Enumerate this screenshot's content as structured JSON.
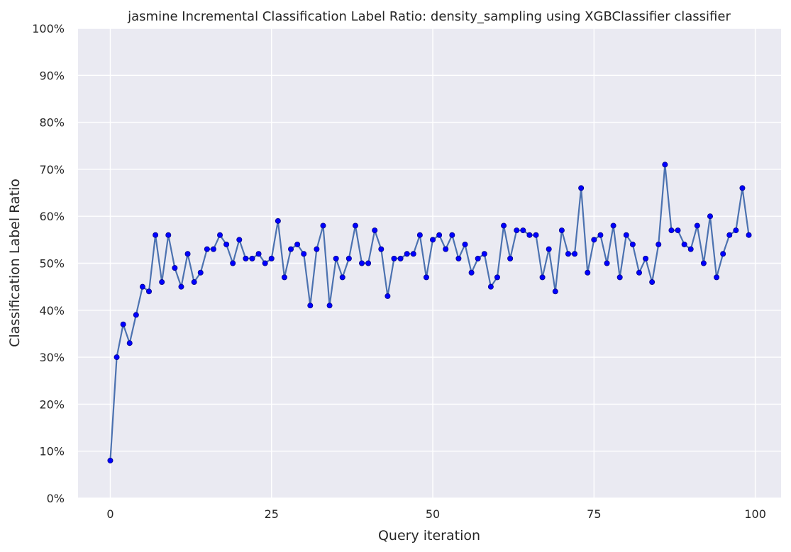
{
  "chart_data": {
    "type": "line",
    "title": "jasmine Incremental Classification Label Ratio: density_sampling using XGBClassifier classifier",
    "xlabel": "Query iteration",
    "ylabel": "Classification Label Ratio",
    "xlim": [
      -5,
      104
    ],
    "ylim": [
      0,
      100
    ],
    "x_ticks": [
      0,
      25,
      50,
      75,
      100
    ],
    "x_tick_labels": [
      "0",
      "25",
      "50",
      "75",
      "100"
    ],
    "y_ticks": [
      0,
      10,
      20,
      30,
      40,
      50,
      60,
      70,
      80,
      90,
      100
    ],
    "y_tick_labels": [
      "0%",
      "10%",
      "20%",
      "30%",
      "40%",
      "50%",
      "60%",
      "70%",
      "80%",
      "90%",
      "100%"
    ],
    "grid": true,
    "legend": "none",
    "colors": {
      "background": "#eaeaf2",
      "line": "#4c72b0",
      "marker": "#0000ff",
      "marker_edge": "#00008b"
    },
    "series": [
      {
        "x": [
          0,
          1,
          2,
          3,
          4,
          5,
          6,
          7,
          8,
          9,
          10,
          11,
          12,
          13,
          14,
          15,
          16,
          17,
          18,
          19,
          20,
          21,
          22,
          23,
          24,
          25,
          26,
          27,
          28,
          29,
          30,
          31,
          32,
          33,
          34,
          35,
          36,
          37,
          38,
          39,
          40,
          41,
          42,
          43,
          44,
          45,
          46,
          47,
          48,
          49,
          50,
          51,
          52,
          53,
          54,
          55,
          56,
          57,
          58,
          59,
          60,
          61,
          62,
          63,
          64,
          65,
          66,
          67,
          68,
          69,
          70,
          71,
          72,
          73,
          74,
          75,
          76,
          77,
          78,
          79,
          80,
          81,
          82,
          83,
          84,
          85,
          86,
          87,
          88,
          89,
          90,
          91,
          92,
          93,
          94,
          95,
          96,
          97,
          98,
          99
        ],
        "values": [
          8,
          30,
          37,
          33,
          39,
          45,
          44,
          56,
          46,
          56,
          49,
          45,
          52,
          46,
          48,
          53,
          53,
          56,
          54,
          50,
          55,
          51,
          51,
          52,
          50,
          51,
          59,
          47,
          53,
          54,
          52,
          41,
          53,
          58,
          41,
          51,
          47,
          51,
          58,
          50,
          50,
          57,
          53,
          43,
          51,
          51,
          52,
          52,
          56,
          47,
          55,
          56,
          53,
          56,
          51,
          54,
          48,
          51,
          52,
          45,
          47,
          58,
          51,
          57,
          57,
          56,
          56,
          47,
          53,
          44,
          57,
          52,
          52,
          66,
          48,
          55,
          56,
          50,
          58,
          47,
          56,
          54,
          48,
          51,
          46,
          54,
          71,
          57,
          57,
          54,
          53,
          58,
          50,
          60,
          47,
          52,
          56,
          57,
          66,
          56
        ]
      }
    ]
  }
}
